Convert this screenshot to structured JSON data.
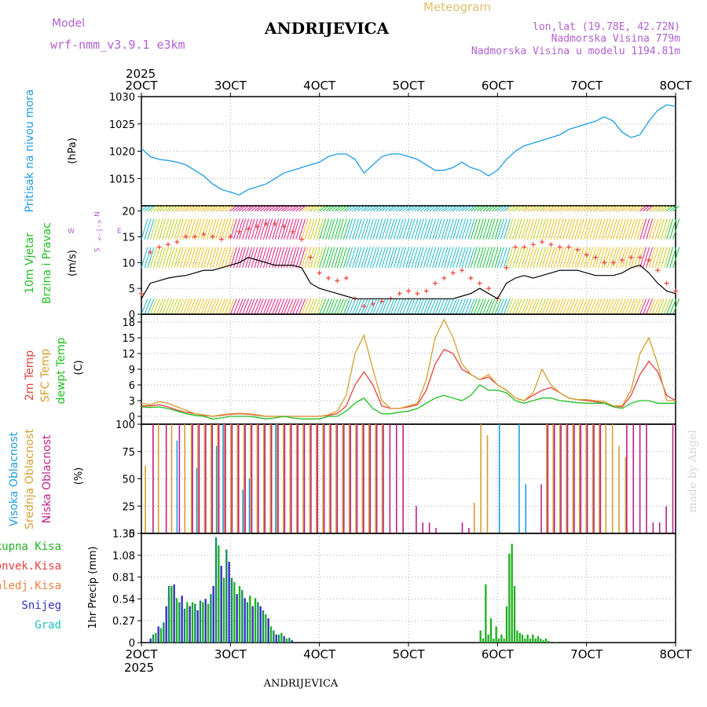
{
  "header": {
    "model_label": "Model",
    "model_name": "wrf-nmm_v3.9.1 e3km",
    "station": "ANDRIJEVICA",
    "title": "Meteogram",
    "lonlat": "lon,lat (19.78E, 42.72N)",
    "elevation": "Nadmorska Visina 779m",
    "model_elevation": "Nadmorska Visina u modelu 1194.81m",
    "footer_station": "ANDRIJEVICA",
    "credit": "made by Angel"
  },
  "colors": {
    "pressure": "#1e9be6",
    "wind_speed": "#000000",
    "gust": "#e8443a",
    "t2m": "#e84040",
    "sfc": "#d4a030",
    "dewpt": "#20c020",
    "high_cloud": "#1e9be6",
    "mid_cloud": "#d4a030",
    "low_cloud": "#c0208a",
    "total_precip": "#20b020",
    "conv_precip": "#1a8a6a",
    "snow": "#3030c0"
  },
  "chart_data": [
    {
      "type": "line",
      "panel": "pressure",
      "year_label": "2025",
      "x_ticks": [
        "2OCT",
        "3OCT",
        "4OCT",
        "5OCT",
        "6OCT",
        "7OCT",
        "8OCT"
      ],
      "x_range": [
        2,
        8
      ],
      "ylim": [
        1010,
        1030
      ],
      "y_ticks": [
        1015,
        1020,
        1025,
        1030
      ],
      "ylabel": "(hPa)",
      "series_label": "Pritisak na nivou mora",
      "x": [
        2.0,
        2.1,
        2.2,
        2.3,
        2.4,
        2.5,
        2.6,
        2.7,
        2.8,
        2.9,
        3.0,
        3.1,
        3.2,
        3.3,
        3.4,
        3.5,
        3.6,
        3.7,
        3.8,
        3.9,
        4.0,
        4.1,
        4.2,
        4.3,
        4.4,
        4.5,
        4.6,
        4.7,
        4.8,
        4.9,
        5.0,
        5.1,
        5.2,
        5.3,
        5.4,
        5.5,
        5.6,
        5.7,
        5.8,
        5.9,
        6.0,
        6.1,
        6.2,
        6.3,
        6.4,
        6.5,
        6.6,
        6.7,
        6.8,
        6.9,
        7.0,
        7.1,
        7.2,
        7.3,
        7.4,
        7.5,
        7.6,
        7.7,
        7.8,
        7.9,
        8.0
      ],
      "values": [
        1020.5,
        1019,
        1018.5,
        1018.3,
        1018,
        1017.5,
        1016.5,
        1015.5,
        1014,
        1013,
        1012.5,
        1012,
        1013,
        1013.5,
        1014,
        1015,
        1016,
        1016.5,
        1017,
        1017.5,
        1018,
        1019,
        1019.5,
        1019.5,
        1018.5,
        1016,
        1017.5,
        1019,
        1019.5,
        1019.5,
        1019,
        1018.5,
        1017.5,
        1016.5,
        1016.5,
        1017,
        1018,
        1017,
        1016.5,
        1015.5,
        1016.5,
        1018.5,
        1020,
        1021,
        1021.5,
        1022,
        1022.5,
        1023,
        1024,
        1024.5,
        1025,
        1025.5,
        1026.3,
        1025.5,
        1023.5,
        1022.5,
        1023,
        1025.5,
        1027.5,
        1028.5,
        1028.2
      ]
    },
    {
      "type": "line",
      "panel": "wind",
      "ylim": [
        0,
        21
      ],
      "y_ticks": [
        0,
        5,
        10,
        15,
        20
      ],
      "ylabel": "(m/s)",
      "series_labels": [
        "10m Vjetar",
        "Brzina i Pravac"
      ],
      "compass": {
        "n": "N",
        "s": "S",
        "w": "W",
        "e": "E",
        "arrow": "<-|->"
      },
      "x": [
        2.0,
        2.1,
        2.2,
        2.3,
        2.4,
        2.5,
        2.6,
        2.7,
        2.8,
        2.9,
        3.0,
        3.1,
        3.2,
        3.3,
        3.4,
        3.5,
        3.6,
        3.7,
        3.8,
        3.9,
        4.0,
        4.1,
        4.2,
        4.3,
        4.4,
        4.5,
        4.6,
        4.7,
        4.8,
        4.9,
        5.0,
        5.1,
        5.2,
        5.3,
        5.4,
        5.5,
        5.6,
        5.7,
        5.8,
        5.9,
        6.0,
        6.1,
        6.2,
        6.3,
        6.4,
        6.5,
        6.6,
        6.7,
        6.8,
        6.9,
        7.0,
        7.1,
        7.2,
        7.3,
        7.4,
        7.5,
        7.6,
        7.7,
        7.8,
        7.9,
        8.0
      ],
      "speed": [
        3,
        6,
        6.5,
        7,
        7.3,
        7.5,
        8,
        8.5,
        8.5,
        9,
        9.5,
        10,
        11,
        10.5,
        10,
        9.5,
        9.5,
        9.5,
        9,
        6,
        5,
        4.5,
        4,
        3.5,
        3,
        3,
        3,
        3,
        3,
        3,
        3,
        3,
        3,
        3,
        3,
        3,
        3.5,
        4,
        5,
        4,
        3,
        6,
        7,
        7.5,
        7,
        7.5,
        8,
        8.5,
        8.5,
        8.5,
        8,
        7.5,
        7.5,
        7.5,
        8,
        9,
        9.5,
        8,
        6,
        4.5,
        4
      ],
      "gust": [
        4,
        12,
        13,
        13.5,
        14,
        15,
        15,
        15.5,
        15,
        14.5,
        15,
        16,
        16.5,
        17,
        17.5,
        17.5,
        17,
        16,
        14.5,
        11,
        8,
        7,
        6.5,
        7,
        3,
        1.5,
        2,
        2.5,
        3,
        4,
        4.5,
        4,
        4.5,
        6,
        7,
        8,
        8.5,
        7,
        6,
        5,
        3,
        9,
        13,
        13,
        13.5,
        14,
        13.5,
        13,
        13,
        12.5,
        11.5,
        11,
        10,
        10,
        10.5,
        11,
        11,
        10.5,
        8.5,
        6,
        4.5
      ]
    },
    {
      "type": "line",
      "panel": "temperature",
      "ylim": [
        -1.5,
        19.5
      ],
      "y_ticks": [
        0,
        3,
        6,
        9,
        12,
        15,
        18
      ],
      "ylabel": "(C)",
      "series": [
        {
          "name": "2m Temp",
          "values": [
            2,
            2,
            2.2,
            1.8,
            1.2,
            0.8,
            0.5,
            0.2,
            0,
            0.2,
            0.4,
            0.5,
            0.4,
            0.2,
            0,
            0,
            0,
            0,
            0,
            0,
            0,
            0.2,
            0.5,
            2,
            6,
            8.5,
            6,
            2,
            1.5,
            1.5,
            1.8,
            2.2,
            5,
            10,
            12.8,
            12,
            9,
            8,
            7,
            7.5,
            6,
            5,
            3.5,
            3,
            4,
            5,
            5.5,
            4.5,
            3.5,
            3.2,
            3,
            2.8,
            2.5,
            2,
            1.8,
            4,
            8,
            10.5,
            8.5,
            4,
            3
          ]
        },
        {
          "name": "SFC Temp",
          "values": [
            2.5,
            2.2,
            2.8,
            2.5,
            1.8,
            1.2,
            0.5,
            0.3,
            0,
            0.3,
            0.5,
            0.6,
            0.5,
            0.3,
            0,
            0,
            0,
            0,
            0,
            0,
            0,
            0.3,
            1,
            4,
            12,
            15.5,
            9,
            3,
            1.5,
            1.5,
            2,
            2.5,
            7,
            15,
            18.5,
            15,
            10,
            8,
            7,
            8,
            6,
            5,
            3.5,
            3,
            4.5,
            9,
            6,
            4.5,
            3.5,
            3.2,
            3.2,
            3,
            2.8,
            2,
            2,
            5,
            12,
            15,
            10,
            3,
            3
          ]
        },
        {
          "name": "dewpt Temp",
          "values": [
            1.8,
            1.7,
            1.8,
            1.5,
            1,
            0.5,
            0.2,
            0,
            -0.5,
            -0.3,
            0,
            0,
            0,
            -0.2,
            -0.5,
            -0.3,
            0,
            -0.3,
            -0.5,
            -0.5,
            -0.5,
            0,
            0,
            1,
            2.5,
            3.5,
            1.5,
            0.5,
            0.5,
            0.8,
            1,
            1.5,
            2.5,
            3.5,
            4,
            3.5,
            3,
            4,
            6,
            5,
            5,
            4.5,
            3,
            2.5,
            3,
            3.5,
            3.5,
            3,
            2.8,
            2.6,
            2.5,
            2.5,
            2.5,
            1.8,
            1.5,
            2.5,
            3,
            3,
            2.5,
            2.5,
            2.5
          ]
        }
      ]
    },
    {
      "type": "bar",
      "panel": "cloud",
      "ylim": [
        0,
        100
      ],
      "y_ticks": [
        0,
        25,
        50,
        75,
        100
      ],
      "ylabel": "(%)",
      "series": [
        {
          "name": "Visoka Oblacnost",
          "values": [
            0,
            0,
            0,
            0,
            0,
            85,
            0,
            0,
            60,
            0,
            0,
            80,
            100,
            0,
            0,
            40,
            50,
            0,
            0,
            0,
            100,
            0,
            0,
            0,
            0,
            0,
            0,
            0,
            0,
            0,
            0,
            0,
            0,
            0,
            0,
            0,
            0,
            0,
            0,
            0,
            0,
            0,
            0,
            0,
            0,
            0,
            0,
            0,
            0,
            0,
            0,
            0,
            0,
            0,
            100,
            0,
            0,
            100,
            45,
            0,
            0,
            0,
            0,
            0,
            0,
            0,
            0,
            0,
            0,
            0,
            0,
            0,
            0,
            0,
            0,
            0,
            0,
            0,
            0,
            0,
            0
          ]
        },
        {
          "name": "Srednja Oblacnost",
          "values": [
            62,
            0,
            100,
            0,
            100,
            0,
            100,
            100,
            100,
            100,
            100,
            100,
            100,
            100,
            100,
            100,
            100,
            100,
            100,
            100,
            100,
            100,
            100,
            100,
            100,
            100,
            100,
            100,
            100,
            100,
            100,
            100,
            100,
            100,
            100,
            100,
            100,
            0,
            0,
            0,
            0,
            0,
            0,
            0,
            0,
            0,
            0,
            0,
            0,
            0,
            28,
            100,
            90,
            0,
            0,
            0,
            0,
            0,
            0,
            0,
            0,
            100,
            100,
            100,
            100,
            100,
            100,
            100,
            100,
            100,
            100,
            100,
            80,
            70,
            0,
            0,
            0,
            0,
            0,
            0,
            0
          ]
        },
        {
          "name": "Niska Oblacnost",
          "values": [
            0,
            100,
            0,
            100,
            0,
            100,
            0,
            100,
            100,
            100,
            100,
            100,
            100,
            100,
            100,
            100,
            100,
            100,
            100,
            100,
            100,
            100,
            100,
            100,
            100,
            100,
            100,
            100,
            100,
            100,
            100,
            100,
            100,
            100,
            100,
            100,
            100,
            100,
            100,
            100,
            0,
            25,
            10,
            10,
            5,
            0,
            0,
            0,
            10,
            5,
            0,
            0,
            0,
            0,
            0,
            0,
            0,
            0,
            0,
            0,
            45,
            100,
            100,
            100,
            100,
            100,
            100,
            100,
            100,
            100,
            0,
            0,
            0,
            100,
            100,
            100,
            100,
            10,
            10,
            25,
            100
          ]
        }
      ]
    },
    {
      "type": "bar",
      "panel": "precip",
      "ylim": [
        0,
        1.35
      ],
      "y_ticks": [
        0,
        0.27,
        0.54,
        0.81,
        1.08,
        1.35
      ],
      "ylabel": "1hr Precip (mm)",
      "legend": [
        "Ukupna Kisa",
        "Konvek.Kisa",
        "Zaledj.Kisa",
        "Snijeg",
        "Grad"
      ],
      "x_ticks_bottom": [
        "2OCT",
        "3OCT",
        "4OCT",
        "5OCT",
        "6OCT",
        "7OCT",
        "8OCT"
      ],
      "year_label_bottom": "2025",
      "total": [
        0,
        0,
        0,
        0.05,
        0.1,
        0.12,
        0.2,
        0.18,
        0.25,
        0.45,
        0.7,
        0.7,
        0.72,
        0.55,
        0.5,
        0.58,
        0.42,
        0.5,
        0.45,
        0.5,
        0.48,
        0.4,
        0.52,
        0.5,
        0.54,
        0.48,
        0.6,
        0.7,
        1.3,
        1.2,
        0.95,
        0.8,
        1.15,
        1.0,
        0.8,
        0.75,
        0.6,
        0.7,
        0.65,
        0.55,
        0.5,
        0.58,
        0.45,
        0.55,
        0.5,
        0.45,
        0.4,
        0.35,
        0.3,
        0.2,
        0.15,
        0.1,
        0.1,
        0.12,
        0.08,
        0.05,
        0.06,
        0.03,
        0,
        0,
        0,
        0,
        0,
        0,
        0,
        0,
        0,
        0,
        0,
        0,
        0,
        0,
        0,
        0,
        0,
        0,
        0,
        0,
        0,
        0,
        0,
        0,
        0,
        0,
        0,
        0,
        0,
        0,
        0,
        0,
        0,
        0,
        0,
        0,
        0,
        0,
        0,
        0,
        0,
        0,
        0,
        0,
        0,
        0,
        0,
        0,
        0,
        0,
        0,
        0,
        0,
        0,
        0,
        0,
        0,
        0,
        0,
        0,
        0,
        0,
        0,
        0,
        0,
        0,
        0,
        0,
        0,
        0,
        0,
        0.15,
        0.05,
        0.72,
        0.1,
        0.3,
        0.05,
        0.2,
        0.05,
        0.1,
        0.05,
        0.45,
        1.1,
        1.22,
        0.7,
        0.15,
        0.12,
        0.1,
        0.05,
        0.1,
        0.05,
        0.1,
        0.05,
        0.08,
        0.05,
        0.03,
        0.05,
        0.02,
        0,
        0,
        0.01,
        0,
        0,
        0,
        0,
        0,
        0,
        0,
        0,
        0,
        0,
        0,
        0,
        0,
        0,
        0,
        0,
        0,
        0,
        0,
        0,
        0,
        0,
        0,
        0,
        0,
        0,
        0,
        0,
        0,
        0,
        0,
        0,
        0,
        0,
        0,
        0,
        0,
        0,
        0,
        0,
        0,
        0,
        0,
        0,
        0
      ]
    }
  ]
}
